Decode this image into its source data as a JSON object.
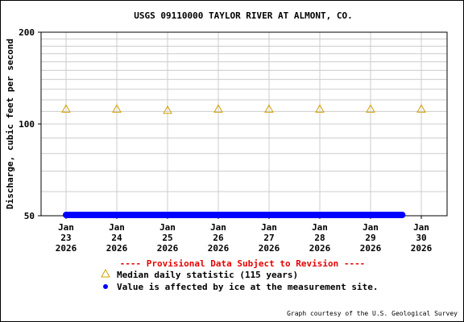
{
  "chart_data": {
    "type": "scatter",
    "title": "USGS 09110000 TAYLOR RIVER AT ALMONT, CO.",
    "ylabel": "Discharge, cubic feet per second",
    "xlabel": "",
    "y_scale": "log",
    "ylim": [
      50,
      200
    ],
    "y_ticks": [
      "50",
      "100",
      "200"
    ],
    "y_tick_values": [
      50,
      100,
      200
    ],
    "y_minor_ticks": [
      60,
      70,
      80,
      90,
      110,
      120,
      130,
      140,
      150,
      160,
      170,
      180,
      190
    ],
    "x_ticks": [
      {
        "month": "Jan",
        "day": "23",
        "year": "2026",
        "value": "2026-01-23"
      },
      {
        "month": "Jan",
        "day": "24",
        "year": "2026",
        "value": "2026-01-24"
      },
      {
        "month": "Jan",
        "day": "25",
        "year": "2026",
        "value": "2026-01-25"
      },
      {
        "month": "Jan",
        "day": "26",
        "year": "2026",
        "value": "2026-01-26"
      },
      {
        "month": "Jan",
        "day": "27",
        "year": "2026",
        "value": "2026-01-27"
      },
      {
        "month": "Jan",
        "day": "28",
        "year": "2026",
        "value": "2026-01-28"
      },
      {
        "month": "Jan",
        "day": "29",
        "year": "2026",
        "value": "2026-01-29"
      },
      {
        "month": "Jan",
        "day": "30",
        "year": "2026",
        "value": "2026-01-30"
      }
    ],
    "xlim": [
      "2026-01-23",
      "2026-01-30"
    ],
    "grid": true,
    "series": [
      {
        "name": "Median daily statistic (115 years)",
        "marker": "triangle",
        "color": "#d4a000",
        "x": [
          "2026-01-23",
          "2026-01-24",
          "2026-01-25",
          "2026-01-26",
          "2026-01-27",
          "2026-01-28",
          "2026-01-29",
          "2026-01-30"
        ],
        "y": [
          112,
          112,
          111,
          112,
          112,
          112,
          112,
          112
        ]
      },
      {
        "name": "Value is affected by ice at the measurement site.",
        "marker": "dot",
        "color": "#0000ff",
        "x_start": "2026-01-23",
        "x_end": "2026-01-29 15:00",
        "y": 50
      }
    ],
    "provisional_note": "---- Provisional Data Subject to Revision ----",
    "credit": "Graph courtesy of the U.S. Geological Survey"
  }
}
